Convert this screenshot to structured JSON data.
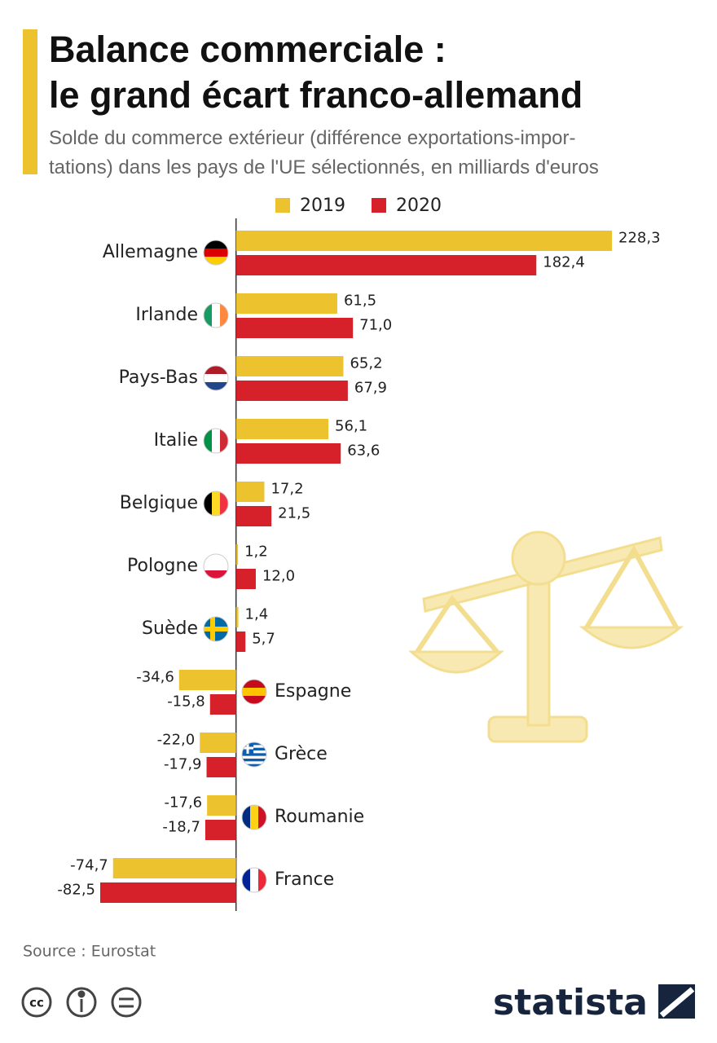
{
  "chart_data": {
    "type": "bar",
    "orientation": "horizontal",
    "title": [
      "Balance commerciale :",
      "le grand écart franco-allemand"
    ],
    "subtitle": [
      "Solde du commerce extérieur (différence exportations-impor-",
      "tations) dans les pays de l'UE sélectionnés, en milliards d'euros"
    ],
    "categories": [
      "Allemagne",
      "Irlande",
      "Pays-Bas",
      "Italie",
      "Belgique",
      "Pologne",
      "Suède",
      "Espagne",
      "Grèce",
      "Roumanie",
      "France"
    ],
    "series": [
      {
        "name": "2019",
        "color": "#ecc22f",
        "values": [
          228.3,
          61.5,
          65.2,
          56.1,
          17.2,
          1.2,
          1.4,
          -34.6,
          -22.0,
          -17.6,
          -74.7
        ],
        "value_labels": [
          "228,3",
          "61,5",
          "65,2",
          "56,1",
          "17,2",
          "1,2",
          "1,4",
          "-34,6",
          "-22,0",
          "-17,6",
          "-74,7"
        ]
      },
      {
        "name": "2020",
        "color": "#d6202a",
        "values": [
          182.4,
          71.0,
          67.9,
          63.6,
          21.5,
          12.0,
          5.7,
          -15.8,
          -17.9,
          -18.7,
          -82.5
        ],
        "value_labels": [
          "182,4",
          "71,0",
          "67,9",
          "63,6",
          "21,5",
          "12,0",
          "5,7",
          "-15,8",
          "-17,9",
          "-18,7",
          "-82,5"
        ]
      }
    ],
    "legend": "top",
    "source": "Source : Eurostat",
    "license": "cc",
    "brand": "statista"
  }
}
